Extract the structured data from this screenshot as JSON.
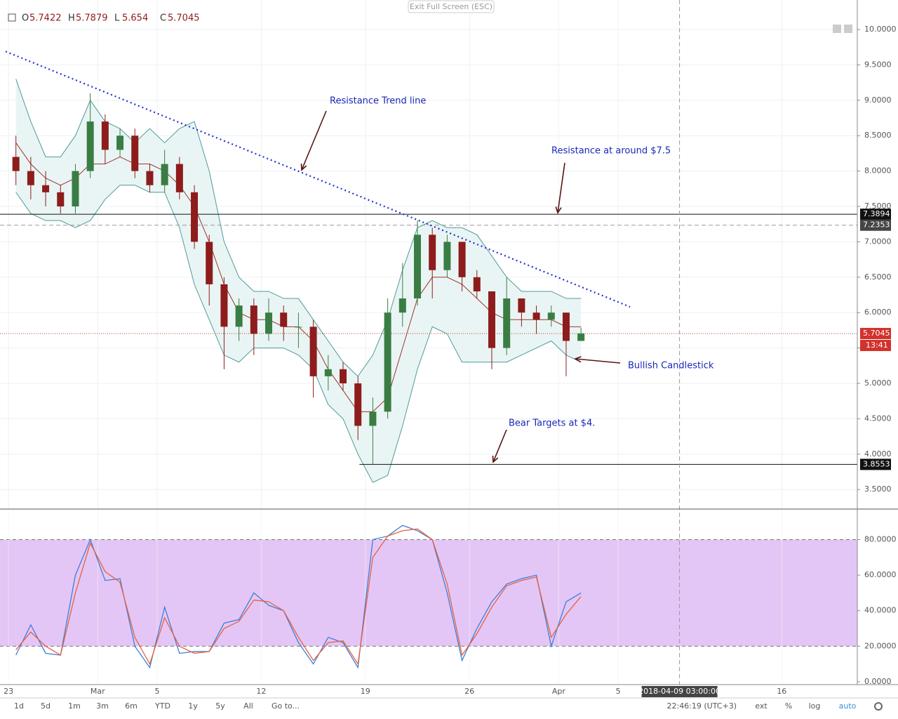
{
  "header": {
    "ohlc": [
      {
        "label": "O",
        "value": 5.7422
      },
      {
        "label": "H",
        "value": 5.7879
      },
      {
        "label": "L",
        "value": 5.654
      },
      {
        "label": "C",
        "value": 5.7045
      }
    ]
  },
  "exit_button": "Exit Full Screen (ESC)",
  "chart_data": [
    {
      "type": "candlestick",
      "x": [
        0.5,
        1.5,
        2.5,
        3.5,
        4.5,
        5.5,
        6.5,
        7.5,
        8.5,
        9.5,
        10.5,
        11.5,
        12.5,
        13.5,
        14.5,
        15.5,
        16.5,
        17.5,
        18.5,
        19.5,
        20.5,
        21.5,
        22.5,
        23.5,
        24.5,
        25.5,
        26.5,
        27.5,
        28.5,
        29.5,
        30.5,
        31.5,
        32.5,
        33.5,
        34.5,
        35.5,
        36.5,
        37.5,
        38.5
      ],
      "open": [
        8.2,
        8.0,
        7.8,
        7.7,
        7.5,
        8.0,
        8.7,
        8.3,
        8.5,
        8.0,
        7.8,
        8.1,
        7.7,
        7.0,
        6.4,
        5.8,
        6.1,
        5.7,
        6.0,
        5.8,
        5.8,
        5.1,
        5.2,
        5.0,
        4.4,
        4.6,
        6.0,
        6.2,
        7.1,
        6.6,
        7.0,
        6.5,
        6.3,
        5.5,
        6.2,
        6.0,
        5.9,
        6.0,
        5.6
      ],
      "high": [
        8.5,
        8.2,
        8.0,
        7.8,
        8.1,
        9.1,
        8.8,
        8.6,
        8.6,
        8.1,
        8.3,
        8.2,
        7.8,
        7.1,
        6.5,
        6.2,
        6.2,
        6.2,
        6.1,
        6.0,
        5.9,
        5.4,
        5.3,
        5.1,
        4.8,
        6.2,
        6.7,
        7.3,
        7.2,
        7.1,
        7.0,
        6.6,
        6.3,
        6.5,
        6.2,
        6.1,
        6.1,
        6.0,
        5.7879
      ],
      "low": [
        7.8,
        7.6,
        7.5,
        7.4,
        7.4,
        7.9,
        8.1,
        8.2,
        7.9,
        7.7,
        7.7,
        7.6,
        6.9,
        6.1,
        5.2,
        5.6,
        5.4,
        5.6,
        5.6,
        5.5,
        4.8,
        4.9,
        4.9,
        4.2,
        3.86,
        4.5,
        5.8,
        6.1,
        6.2,
        6.5,
        6.3,
        6.2,
        5.2,
        5.4,
        5.8,
        5.7,
        5.8,
        5.1,
        5.654
      ],
      "close": [
        8.0,
        7.8,
        7.7,
        7.5,
        8.0,
        8.7,
        8.3,
        8.5,
        8.0,
        7.8,
        8.1,
        7.7,
        7.0,
        6.4,
        5.8,
        6.1,
        5.7,
        6.0,
        5.8,
        5.8,
        5.1,
        5.2,
        5.0,
        4.4,
        4.6,
        6.0,
        6.2,
        7.1,
        6.6,
        7.0,
        6.5,
        6.3,
        5.5,
        6.2,
        6.0,
        5.9,
        6.0,
        5.6,
        5.7045
      ],
      "up_color": "#3a7d44",
      "down_color": "#8e1c1c",
      "bands": {
        "upper": [
          9.3,
          8.7,
          8.2,
          8.2,
          8.5,
          9.0,
          8.7,
          8.6,
          8.4,
          8.6,
          8.4,
          8.6,
          8.7,
          8.0,
          7.0,
          6.5,
          6.3,
          6.3,
          6.2,
          6.2,
          5.9,
          5.6,
          5.3,
          5.1,
          5.4,
          5.9,
          6.6,
          7.2,
          7.3,
          7.2,
          7.2,
          7.1,
          6.8,
          6.5,
          6.3,
          6.3,
          6.3,
          6.2,
          6.2
        ],
        "middle": [
          8.4,
          8.1,
          7.9,
          7.8,
          7.9,
          8.1,
          8.1,
          8.2,
          8.1,
          8.1,
          8.0,
          7.8,
          7.5,
          7.0,
          6.4,
          6.0,
          5.9,
          5.9,
          5.8,
          5.8,
          5.6,
          5.2,
          4.9,
          4.6,
          4.6,
          4.8,
          5.5,
          6.2,
          6.5,
          6.5,
          6.4,
          6.2,
          6.0,
          5.9,
          5.9,
          5.9,
          5.9,
          5.8,
          5.8
        ],
        "lower": [
          7.7,
          7.4,
          7.3,
          7.3,
          7.2,
          7.3,
          7.6,
          7.8,
          7.8,
          7.7,
          7.7,
          7.2,
          6.4,
          5.9,
          5.4,
          5.3,
          5.5,
          5.5,
          5.5,
          5.4,
          5.2,
          4.7,
          4.5,
          4.0,
          3.6,
          3.7,
          4.4,
          5.2,
          5.8,
          5.7,
          5.3,
          5.3,
          5.3,
          5.3,
          5.4,
          5.5,
          5.6,
          5.4,
          5.3
        ],
        "color": "#4f9a9a",
        "fill": "#e9f5f4",
        "middle_color": "#a0342a"
      },
      "trendline": {
        "x": [
          -0.19,
          41.8
        ],
        "y": [
          9.69,
          6.08
        ],
        "color": "#1f2fd0"
      },
      "resistance": 7.3894,
      "support": {
        "x": 23.6,
        "value": 3.8553
      },
      "crosshair_price": 7.2353,
      "last_price": 5.7045,
      "countdown": "13:41",
      "annotations": [
        "Resistance Trend line",
        "Resistance at around $7.5",
        "Bullish Candlestick",
        "Bear Targets at $4."
      ],
      "xlim": [
        -0.57,
        57.08
      ],
      "ylim": [
        3.234,
        10.417
      ],
      "yticks": [
        {
          "value": 3.5,
          "label": "3.5000"
        },
        {
          "value": 4,
          "label": "4.0000"
        },
        {
          "value": 4.5,
          "label": "4.5000"
        },
        {
          "value": 5,
          "label": "5.0000"
        },
        {
          "value": 5.5,
          "label": "5.5000"
        },
        {
          "value": 6,
          "label": "6.0000"
        },
        {
          "value": 6.5,
          "label": "6.5000"
        },
        {
          "value": 7,
          "label": "7.0000"
        },
        {
          "value": 7.5,
          "label": "7.5000"
        },
        {
          "value": 8,
          "label": "8.0000"
        },
        {
          "value": 8.5,
          "label": "8.5000"
        },
        {
          "value": 9,
          "label": "9.0000"
        },
        {
          "value": 9.5,
          "label": "9.5000"
        },
        {
          "value": 10,
          "label": "10.0000"
        }
      ],
      "grid": true
    },
    {
      "type": "line",
      "x": [
        0.5,
        1.5,
        2.5,
        3.5,
        4.5,
        5.5,
        6.5,
        7.5,
        8.5,
        9.5,
        10.5,
        11.5,
        12.5,
        13.5,
        14.5,
        15.5,
        16.5,
        17.5,
        18.5,
        19.5,
        20.5,
        21.5,
        22.5,
        23.5,
        24.5,
        25.5,
        26.5,
        27.5,
        28.5,
        29.5,
        30.5,
        31.5,
        32.5,
        33.5,
        34.5,
        35.5,
        36.5,
        37.5,
        38.5
      ],
      "series": [
        {
          "color": "#3d7fd9",
          "values": [
            15,
            32,
            16,
            15,
            60,
            80,
            57,
            58,
            20,
            8,
            42,
            16,
            17,
            17,
            33,
            35,
            50,
            43,
            40,
            22,
            10,
            25,
            22,
            8,
            80,
            82,
            88,
            85,
            80,
            50,
            12,
            30,
            45,
            55,
            58,
            60,
            20,
            45,
            50
          ]
        },
        {
          "color": "#e8613a",
          "values": [
            18,
            28,
            20,
            15,
            50,
            78,
            62,
            56,
            25,
            10,
            36,
            20,
            16,
            17,
            30,
            34,
            46,
            45,
            40,
            25,
            12,
            22,
            23,
            10,
            70,
            82,
            85,
            86,
            80,
            55,
            15,
            27,
            42,
            54,
            57,
            59,
            25,
            38,
            48
          ]
        }
      ],
      "band": [
        20,
        80
      ],
      "band_color": "#e4c6f6",
      "xlim": [
        -0.57,
        57.08
      ],
      "ylim": [
        -1.6,
        96.8
      ],
      "yticks": [
        {
          "value": 0,
          "label": "0.0000"
        },
        {
          "value": 20,
          "label": "20.0000"
        },
        {
          "value": 40,
          "label": "40.0000"
        },
        {
          "value": 60,
          "label": "60.0000"
        },
        {
          "value": 80,
          "label": "80.0000"
        }
      ],
      "xticks": [
        {
          "value": 0,
          "label": "23"
        },
        {
          "value": 6,
          "label": "Mar"
        },
        {
          "value": 10,
          "label": "5"
        },
        {
          "value": 17,
          "label": "12"
        },
        {
          "value": 24,
          "label": "19"
        },
        {
          "value": 31,
          "label": "26"
        },
        {
          "value": 37,
          "label": "Apr"
        },
        {
          "value": 41,
          "label": "5"
        },
        {
          "value": 52,
          "label": "16"
        }
      ],
      "crosshair": {
        "x": 45.125,
        "label": "2018-04-09 03:00:00"
      },
      "grid": true
    }
  ],
  "toolbar": {
    "ranges": [
      "1d",
      "5d",
      "1m",
      "3m",
      "6m",
      "YTD",
      "1y",
      "5y",
      "All",
      "Go to..."
    ],
    "clock": "22:46:19 (UTC+3)",
    "options": [
      "ext",
      "%",
      "log",
      "auto"
    ]
  }
}
